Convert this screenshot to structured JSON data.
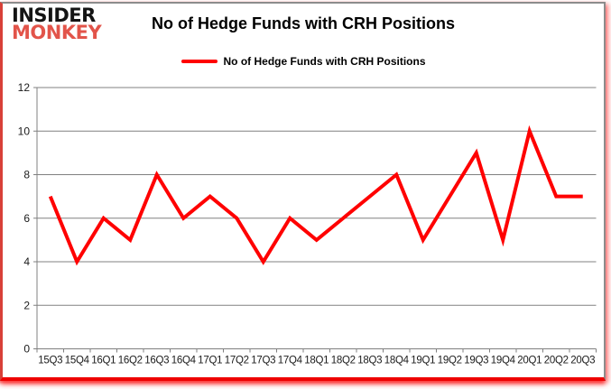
{
  "page": {
    "background": "#ffffff",
    "frame_border_color": "#8c8c8c",
    "glow_color": "#ff0000"
  },
  "logo": {
    "line1": "INSIDER",
    "line2": "MONKEY",
    "line1_color": "#141414",
    "line2_color": "#e2544a"
  },
  "header": {
    "title": "No of Hedge Funds with CRH Positions"
  },
  "legend": {
    "label": "No of Hedge Funds with CRH Positions",
    "swatch_color": "#ff0000"
  },
  "chart_data": {
    "type": "line",
    "title": "No of Hedge Funds with CRH Positions",
    "categories": [
      "15Q3",
      "15Q4",
      "16Q1",
      "16Q2",
      "16Q3",
      "16Q4",
      "17Q1",
      "17Q2",
      "17Q3",
      "17Q4",
      "18Q1",
      "18Q2",
      "18Q3",
      "18Q4",
      "19Q1",
      "19Q2",
      "19Q3",
      "19Q4",
      "20Q1",
      "20Q2",
      "20Q3"
    ],
    "series": [
      {
        "name": "No of Hedge Funds with CRH Positions",
        "color": "#ff0000",
        "values": [
          7,
          4,
          6,
          5,
          8,
          6,
          7,
          6,
          4,
          6,
          5,
          6,
          7,
          8,
          5,
          7,
          9,
          5,
          10,
          7,
          7
        ]
      }
    ],
    "xlabel": "",
    "ylabel": "",
    "ylim": [
      0,
      12
    ],
    "yticks": [
      0,
      2,
      4,
      6,
      8,
      10,
      12
    ],
    "grid": "horizontal",
    "legend_position": "top-center",
    "gridline_color": "#808080",
    "axis_color": "#808080",
    "tick_label_color": "#1a1a1a"
  }
}
